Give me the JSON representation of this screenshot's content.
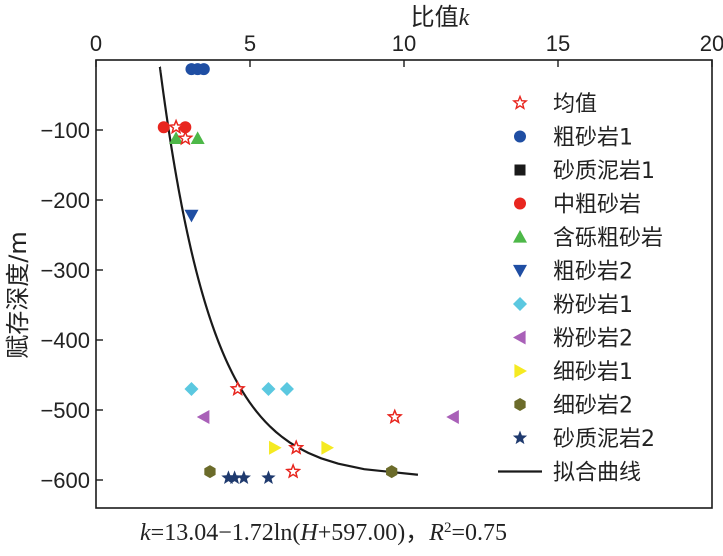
{
  "chart_data": {
    "type": "scatter",
    "x_axis": {
      "label_main": "比值",
      "label_italic": "k",
      "position": "top",
      "range": [
        0,
        20
      ],
      "ticks": [
        0,
        5,
        10,
        15,
        20
      ]
    },
    "y_axis": {
      "label": "赋存深度/m",
      "range": [
        -640,
        0
      ],
      "ticks": [
        -100,
        -200,
        -300,
        -400,
        -500,
        -600
      ]
    },
    "legend": {
      "position": "right"
    },
    "series": [
      {
        "name": "均值",
        "marker": "star-open",
        "color": "#e8261f",
        "points": [
          [
            2.6,
            -96
          ],
          [
            2.9,
            -112
          ],
          [
            4.6,
            -470
          ],
          [
            9.7,
            -510
          ],
          [
            6.5,
            -554
          ],
          [
            6.4,
            -588
          ]
        ]
      },
      {
        "name": "粗砂岩1",
        "marker": "circle",
        "color": "#1f4ea3",
        "points": [
          [
            3.1,
            -13
          ],
          [
            3.3,
            -13
          ],
          [
            3.5,
            -13
          ]
        ]
      },
      {
        "name": "砂质泥岩1",
        "marker": "square",
        "color": "#1a1a1a",
        "points": []
      },
      {
        "name": "中粗砂岩",
        "marker": "circle",
        "color": "#e8261f",
        "points": [
          [
            2.2,
            -96
          ],
          [
            2.9,
            -96
          ]
        ]
      },
      {
        "name": "含砾粗砂岩",
        "marker": "triangle-up",
        "color": "#4db848",
        "points": [
          [
            2.6,
            -112
          ],
          [
            3.3,
            -112
          ]
        ]
      },
      {
        "name": "粗砂岩2",
        "marker": "triangle-down",
        "color": "#1f4ea3",
        "points": [
          [
            3.1,
            -222
          ]
        ]
      },
      {
        "name": "粉砂岩1",
        "marker": "diamond",
        "color": "#5bc8e0",
        "points": [
          [
            3.1,
            -470
          ],
          [
            5.6,
            -470
          ],
          [
            6.2,
            -470
          ]
        ]
      },
      {
        "name": "粉砂岩2",
        "marker": "triangle-left",
        "color": "#a960b8",
        "points": [
          [
            3.5,
            -510
          ],
          [
            11.6,
            -510
          ]
        ]
      },
      {
        "name": "细砂岩1",
        "marker": "triangle-right",
        "color": "#f5ea21",
        "points": [
          [
            5.8,
            -554
          ],
          [
            7.5,
            -554
          ]
        ]
      },
      {
        "name": "细砂岩2",
        "marker": "hexagon",
        "color": "#6b6b2a",
        "points": [
          [
            3.7,
            -588
          ],
          [
            9.6,
            -588
          ]
        ]
      },
      {
        "name": "砂质泥岩2",
        "marker": "star",
        "color": "#1f3a6e",
        "points": [
          [
            4.3,
            -597
          ],
          [
            4.5,
            -597
          ],
          [
            4.8,
            -597
          ],
          [
            5.6,
            -597
          ]
        ]
      }
    ],
    "fit": {
      "name": "拟合曲线",
      "a": 13.04,
      "b": 1.72,
      "c": 597.0,
      "y_from": -592.5,
      "y_to": -10,
      "color": "#1a1a1a"
    },
    "formula": {
      "k": "k",
      "eq1": "=13.04−1.72ln(",
      "H": "H",
      "eq2": "+597.00)，",
      "R": "R",
      "sup": "2",
      "eq3": "=0.75"
    }
  }
}
